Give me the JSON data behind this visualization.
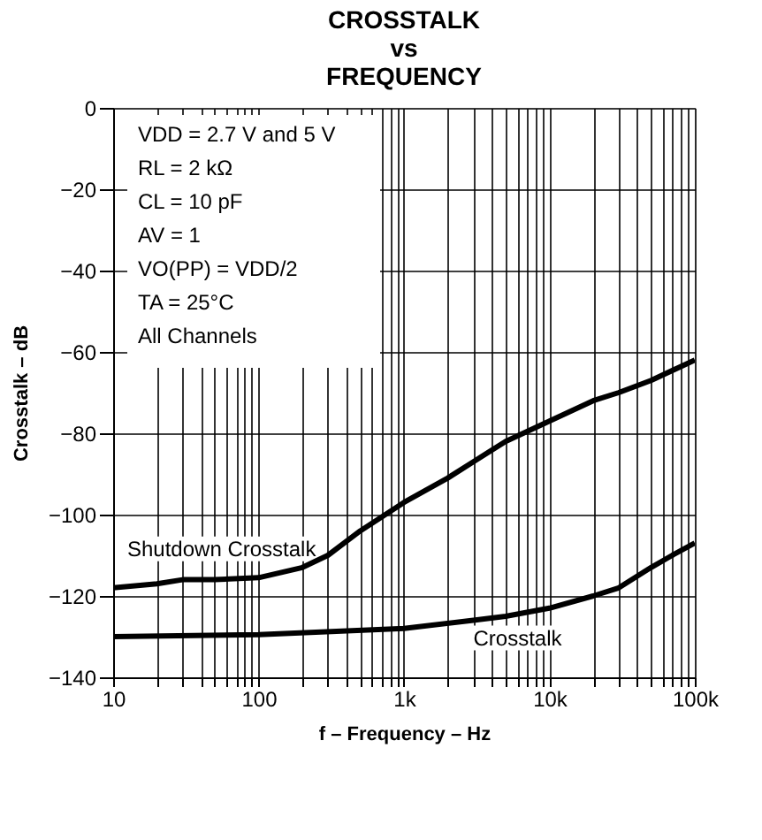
{
  "chart_data": {
    "type": "line",
    "title": "CROSSTALK vs FREQUENCY",
    "xlabel": "f – Frequency – Hz",
    "ylabel": "Crosstalk – dB",
    "log": "x",
    "grid": true,
    "legend": false,
    "marker": "none",
    "line_style": "solid",
    "xlim": [
      10,
      100000
    ],
    "ylim": [
      -140,
      0
    ],
    "xticks": [
      {
        "value": 10,
        "label": "10"
      },
      {
        "value": 20,
        "label": null
      },
      {
        "value": 30,
        "label": null
      },
      {
        "value": 40,
        "label": null
      },
      {
        "value": 50,
        "label": null
      },
      {
        "value": 60,
        "label": null
      },
      {
        "value": 70,
        "label": null
      },
      {
        "value": 80,
        "label": null
      },
      {
        "value": 90,
        "label": null
      },
      {
        "value": 100,
        "label": "100"
      },
      {
        "value": 200,
        "label": null
      },
      {
        "value": 300,
        "label": null
      },
      {
        "value": 400,
        "label": null
      },
      {
        "value": 500,
        "label": null
      },
      {
        "value": 600,
        "label": null
      },
      {
        "value": 700,
        "label": null
      },
      {
        "value": 800,
        "label": null
      },
      {
        "value": 900,
        "label": null
      },
      {
        "value": 1000,
        "label": "1k"
      },
      {
        "value": 2000,
        "label": null
      },
      {
        "value": 3000,
        "label": null
      },
      {
        "value": 4000,
        "label": null
      },
      {
        "value": 5000,
        "label": null
      },
      {
        "value": 6000,
        "label": null
      },
      {
        "value": 7000,
        "label": null
      },
      {
        "value": 8000,
        "label": null
      },
      {
        "value": 9000,
        "label": null
      },
      {
        "value": 10000,
        "label": "10k"
      },
      {
        "value": 20000,
        "label": null
      },
      {
        "value": 30000,
        "label": null
      },
      {
        "value": 40000,
        "label": null
      },
      {
        "value": 50000,
        "label": null
      },
      {
        "value": 60000,
        "label": null
      },
      {
        "value": 70000,
        "label": null
      },
      {
        "value": 80000,
        "label": null
      },
      {
        "value": 90000,
        "label": null
      },
      {
        "value": 100000,
        "label": "100k"
      }
    ],
    "yticks": [
      -140,
      -120,
      -100,
      -80,
      -60,
      -40,
      -20,
      0
    ],
    "series": [
      {
        "name": "Shutdown Crosstalk",
        "color": "#000000",
        "x": [
          10,
          20,
          30,
          50,
          100,
          200,
          300,
          500,
          1000,
          2000,
          3000,
          5000,
          10000,
          20000,
          30000,
          50000,
          100000
        ],
        "values": [
          -118,
          -117,
          -116,
          -116,
          -115.5,
          -113,
          -110,
          -104,
          -97,
          -91,
          -87,
          -82,
          -77,
          -72,
          -70,
          -67,
          -62
        ]
      },
      {
        "name": "Crosstalk",
        "color": "#000000",
        "x": [
          10,
          100,
          1000,
          3000,
          5000,
          10000,
          20000,
          30000,
          50000,
          70000,
          100000
        ],
        "values": [
          -130,
          -129.5,
          -128,
          -126,
          -125,
          -123,
          -120,
          -118,
          -113,
          -110,
          -107
        ]
      }
    ],
    "annotations": [
      "VDD = 2.7 V and 5 V",
      "RL = 2 kΩ",
      "CL = 10 pF",
      "AV = 1",
      "VO(PP) = VDD/2",
      "TA = 25°C",
      "All Channels"
    ]
  }
}
